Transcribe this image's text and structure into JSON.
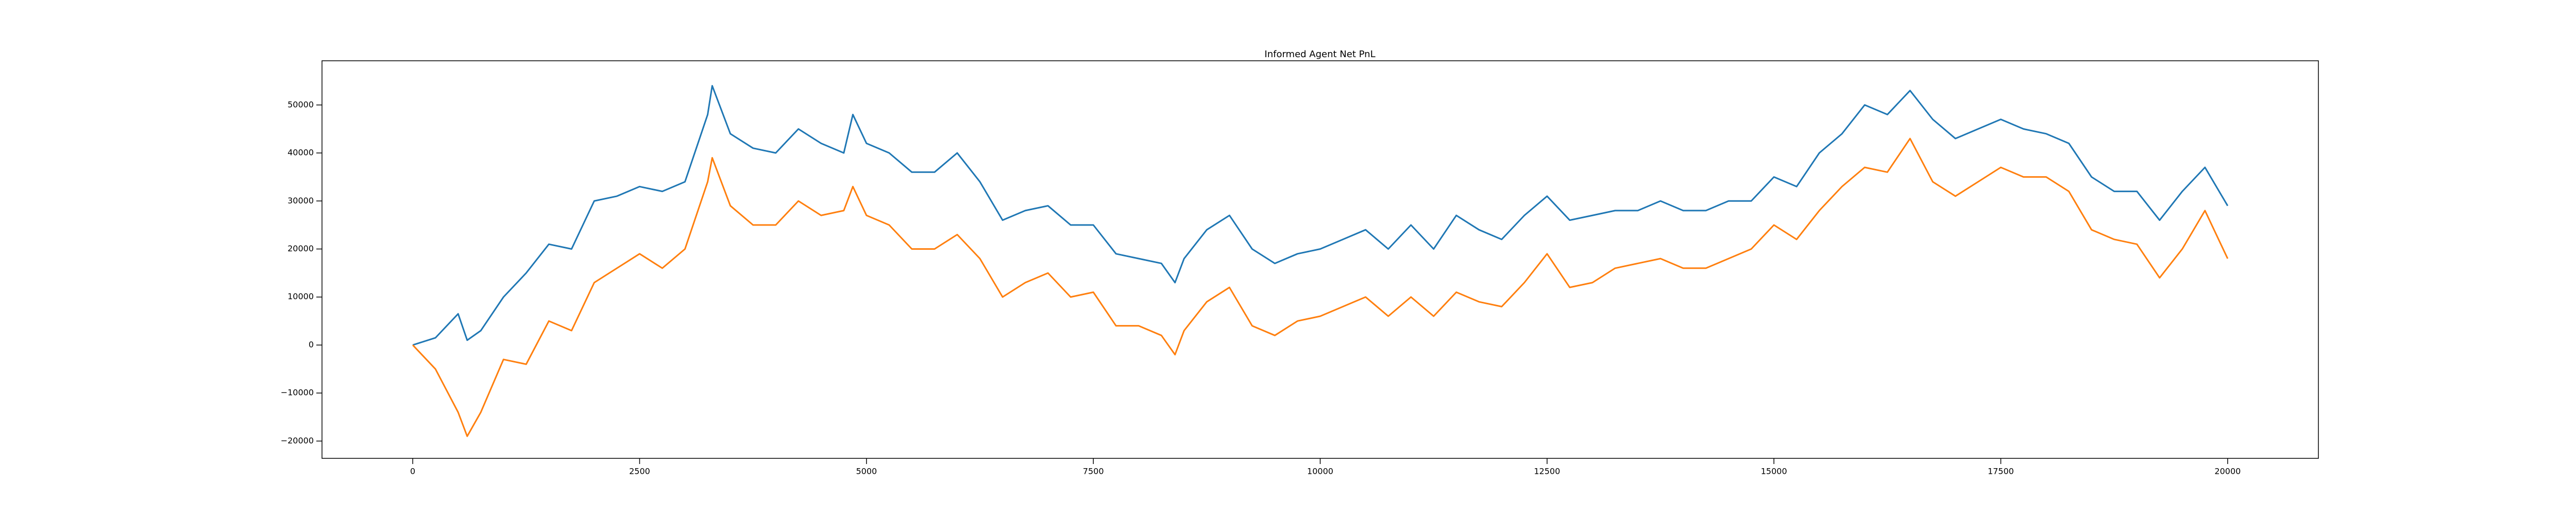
{
  "chart_data": {
    "type": "line",
    "title": "Informed Agent Net PnL",
    "x": [
      0,
      250,
      500,
      600,
      750,
      1000,
      1250,
      1500,
      1750,
      2000,
      2250,
      2500,
      2750,
      3000,
      3250,
      3300,
      3500,
      3750,
      4000,
      4250,
      4500,
      4750,
      4850,
      5000,
      5250,
      5500,
      5750,
      6000,
      6250,
      6500,
      6750,
      7000,
      7250,
      7500,
      7750,
      8000,
      8250,
      8400,
      8500,
      8750,
      9000,
      9250,
      9500,
      9750,
      10000,
      10250,
      10500,
      10750,
      11000,
      11250,
      11500,
      11750,
      12000,
      12250,
      12500,
      12750,
      13000,
      13250,
      13500,
      13750,
      14000,
      14250,
      14500,
      14750,
      15000,
      15250,
      15500,
      15750,
      16000,
      16250,
      16500,
      16750,
      17000,
      17250,
      17500,
      17750,
      18000,
      18250,
      18500,
      18750,
      19000,
      19250,
      19500,
      19750,
      20000
    ],
    "series": [
      {
        "color": "#1f77b4",
        "values": [
          0,
          1500,
          6500,
          1000,
          3000,
          10000,
          15000,
          21000,
          20000,
          30000,
          31000,
          33000,
          32000,
          34000,
          48000,
          54000,
          44000,
          41000,
          40000,
          45000,
          42000,
          40000,
          48000,
          42000,
          40000,
          36000,
          36000,
          40000,
          34000,
          26000,
          28000,
          29000,
          25000,
          25000,
          19000,
          18000,
          17000,
          13000,
          18000,
          24000,
          27000,
          20000,
          17000,
          19000,
          20000,
          22000,
          24000,
          20000,
          25000,
          20000,
          27000,
          24000,
          22000,
          27000,
          31000,
          26000,
          27000,
          28000,
          28000,
          30000,
          28000,
          28000,
          30000,
          30000,
          35000,
          33000,
          40000,
          44000,
          50000,
          48000,
          53000,
          47000,
          43000,
          45000,
          47000,
          45000,
          44000,
          42000,
          35000,
          32000,
          32000,
          26000,
          32000,
          37000,
          29000
        ]
      },
      {
        "color": "#ff7f0e",
        "values": [
          0,
          -5000,
          -14000,
          -19000,
          -14000,
          -3000,
          -4000,
          5000,
          3000,
          13000,
          16000,
          19000,
          16000,
          20000,
          34000,
          39000,
          29000,
          25000,
          25000,
          30000,
          27000,
          28000,
          33000,
          27000,
          25000,
          20000,
          20000,
          23000,
          18000,
          10000,
          13000,
          15000,
          10000,
          11000,
          4000,
          4000,
          2000,
          -2000,
          3000,
          9000,
          12000,
          4000,
          2000,
          5000,
          6000,
          8000,
          10000,
          6000,
          10000,
          6000,
          11000,
          9000,
          8000,
          13000,
          19000,
          12000,
          13000,
          16000,
          17000,
          18000,
          16000,
          16000,
          18000,
          20000,
          25000,
          22000,
          28000,
          33000,
          37000,
          36000,
          43000,
          34000,
          31000,
          34000,
          37000,
          35000,
          35000,
          32000,
          24000,
          22000,
          21000,
          14000,
          20000,
          28000,
          18000
        ]
      }
    ],
    "xlim": [
      -1000,
      21000
    ],
    "xticks": [
      0,
      2500,
      5000,
      7500,
      10000,
      12500,
      15000,
      17500,
      20000
    ],
    "ylim": [
      -23600,
      59200
    ],
    "yticks": [
      {
        "value": -20000,
        "label": "−20000"
      },
      {
        "value": -10000,
        "label": "−10000"
      },
      0,
      10000,
      20000,
      30000,
      40000,
      50000
    ]
  }
}
